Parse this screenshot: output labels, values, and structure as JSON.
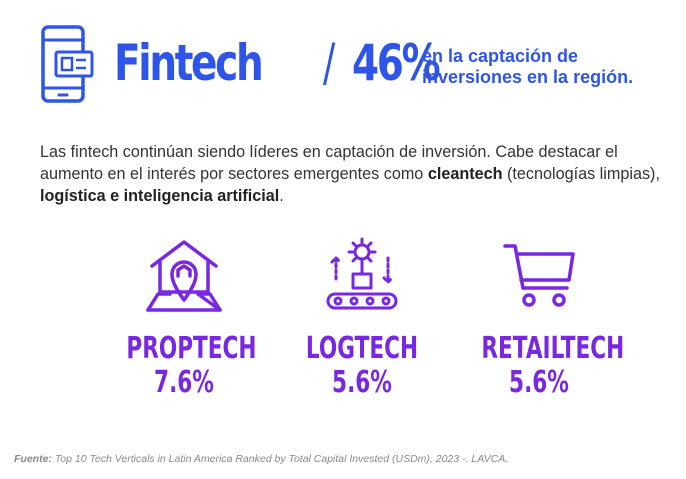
{
  "header": {
    "title": "Fintech",
    "separator": "/",
    "percent": "46%",
    "subtitle_line1": "en la captación de",
    "subtitle_line2": "inversiones en la región.",
    "icon": "mobile-payment-icon"
  },
  "paragraph": {
    "part1": "Las fintech continúan siendo líderes en captación de inversión. Cabe destacar el aumento en el interés por sectores emergentes como ",
    "bold1": "cleantech",
    "part2": " (tecnologías limpias), ",
    "bold2": "logística e inteligencia artificial",
    "part3": "."
  },
  "sectors": [
    {
      "name": "PROPTECH",
      "value": "7.6%",
      "icon": "house-location-icon"
    },
    {
      "name": "LOGTECH",
      "value": "5.6%",
      "icon": "gear-conveyor-icon"
    },
    {
      "name": "RETAILTECH",
      "value": "5.6%",
      "icon": "shopping-cart-icon"
    }
  ],
  "source": {
    "label": "Fuente:",
    "text": " Top 10 Tech Verticals in Latin America Ranked by Total Capital Invested (USDm), 2023 -. LAVCA."
  },
  "colors": {
    "blue": "#2f55e8",
    "purple": "#7a27e3",
    "text": "#333333",
    "source": "#8a8a8a"
  }
}
